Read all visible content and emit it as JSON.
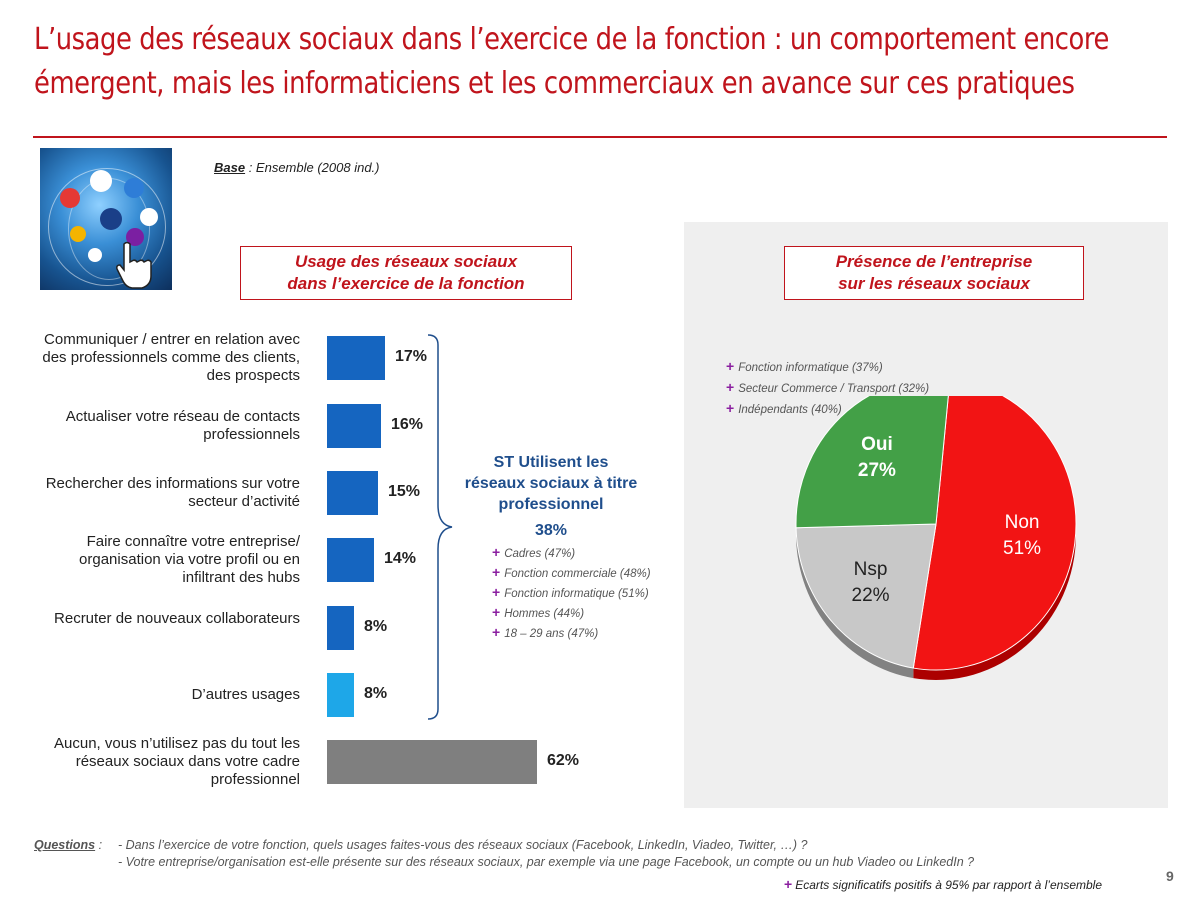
{
  "title": "L’usage des réseaux sociaux dans l’exercice de la fonction : un comportement encore émergent, mais les informaticiens et les commerciaux en avance sur ces pratiques",
  "base": {
    "label": "Base",
    "text": " : Ensemble (2008 ind.)"
  },
  "left_box": "Usage des réseaux sociaux dans l’exercice de la fonction",
  "right_box": "Présence de l’entreprise sur les réseaux sociaux",
  "st": {
    "title": "ST Utilisent les réseaux sociaux à titre professionnel",
    "value": "38%",
    "significant": [
      "Cadres (47%)",
      "Fonction commerciale (48%)",
      "Fonction informatique (51%)",
      "Hommes (44%)",
      "18 – 29 ans (47%)"
    ]
  },
  "pie_significant": [
    "Fonction informatique (37%)",
    "Secteur Commerce / Transport (32%)",
    "Indépendants (40%)"
  ],
  "colors": {
    "accent": "#c0141c",
    "bar_main": "#1565c0",
    "bar_light": "#1ea7e8",
    "bar_gray": "#7f7f7f",
    "plus": "#8b1fa0",
    "pie_oui": "#43a047",
    "pie_non": "#f21414",
    "pie_nsp": "#c8c8c8"
  },
  "chart_data": [
    {
      "type": "bar",
      "orientation": "horizontal",
      "title": "Usage des réseaux sociaux dans l’exercice de la fonction",
      "categories": [
        "Communiquer / entrer en relation avec des professionnels comme des clients, des prospects",
        "Actualiser votre réseau de contacts professionnels",
        "Rechercher des informations sur votre secteur d’activité",
        "Faire connaître votre entreprise/ organisation via votre profil ou en infiltrant des hubs",
        "Recruter de nouveaux collaborateurs",
        "D’autres usages",
        "Aucun, vous n’utilisez pas du tout les réseaux sociaux dans votre cadre professionnel"
      ],
      "values": [
        17,
        16,
        15,
        14,
        8,
        8,
        62
      ],
      "labels": [
        "17%",
        "16%",
        "15%",
        "14%",
        "8%",
        "8%",
        "62%"
      ],
      "bar_colors": [
        "#1565c0",
        "#1565c0",
        "#1565c0",
        "#1565c0",
        "#1565c0",
        "#1ea7e8",
        "#7f7f7f"
      ]
    },
    {
      "type": "pie",
      "title": "Présence de l’entreprise sur les réseaux sociaux",
      "slices": [
        {
          "label": "Non",
          "value": 51,
          "text": "51%",
          "color": "#f21414"
        },
        {
          "label": "Nsp",
          "value": 22,
          "text": "22%",
          "color": "#c8c8c8"
        },
        {
          "label": "Oui",
          "value": 27,
          "text": "27%",
          "color": "#43a047"
        }
      ]
    }
  ],
  "footer": {
    "label": "Questions",
    "sep": " :",
    "lines": [
      "- Dans l’exercice de votre fonction, quels usages faites-vous des réseaux sociaux (Facebook, LinkedIn, Viadeo, Twitter, …) ?",
      "- Votre entreprise/organisation est-elle présente sur des réseaux sociaux, par exemple via une page Facebook, un compte ou un hub Viadeo ou LinkedIn ?"
    ],
    "note": "Ecarts significatifs positifs à 95% par rapport à l’ensemble",
    "plus": "+"
  },
  "page_number": "9"
}
